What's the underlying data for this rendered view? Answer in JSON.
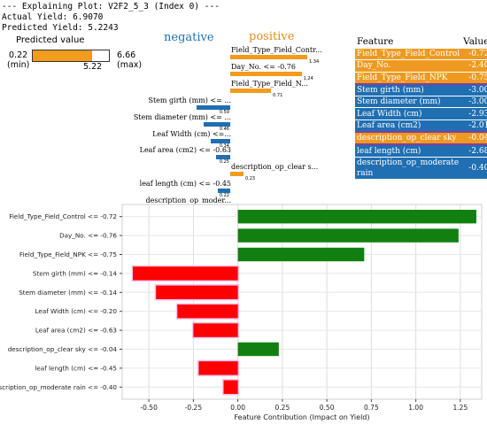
{
  "header": {
    "line1": "--- Explaining Plot: V2F2_5_3 (Index 0) ---",
    "line2": "Actual Yield: 6.9070",
    "line3": "Predicted Yield: 5.2243"
  },
  "predicted_value": {
    "title": "Predicted value",
    "min": "0.22",
    "min_label": "(min)",
    "max": "6.66",
    "max_label": "(max)",
    "value": "5.22",
    "fraction": 0.776,
    "bar_color": "#f29b1d"
  },
  "lime_bars": {
    "negative_label": "negative",
    "positive_label": "positive",
    "negative_color": "#1f6fb2",
    "positive_color": "#f29b1d",
    "items": [
      {
        "label": "Field_Type_Field_Contr...",
        "value": 1.34,
        "value_label": "1.34",
        "side": "positive"
      },
      {
        "label": "Day_No. <= -0.76",
        "value": 1.24,
        "value_label": "1.24",
        "side": "positive"
      },
      {
        "label": "Field_Type_Field_N...",
        "value": 0.71,
        "value_label": "0.71",
        "side": "positive"
      },
      {
        "label": "Stem girth (mm) <= ...",
        "value": -0.59,
        "value_label": "0.59",
        "side": "negative"
      },
      {
        "label": "Stem diameter (mm) <= ...",
        "value": -0.46,
        "value_label": "0.46",
        "side": "negative"
      },
      {
        "label": "Leaf Width (cm) <=...",
        "value": -0.34,
        "value_label": "0.34",
        "side": "negative"
      },
      {
        "label": "Leaf area (cm2) <= -0.63",
        "value": -0.25,
        "value_label": "0.25",
        "side": "negative"
      },
      {
        "label": "description_op_clear s...",
        "value": 0.23,
        "value_label": "0.23",
        "side": "positive"
      },
      {
        "label": "leaf length (cm) <= -0.45",
        "value": -0.22,
        "value_label": "0.22",
        "side": "negative"
      },
      {
        "label": "description_op_moder...",
        "value": -0.08,
        "value_label": "0.08",
        "side": "negative"
      }
    ]
  },
  "feature_table": {
    "col_feature": "Feature",
    "col_value": "Value",
    "rows": [
      {
        "feature": "Field_Type_Field_Control",
        "value": "-0.72",
        "group": 0
      },
      {
        "feature": "Day_No.",
        "value": "-2.40",
        "group": 0
      },
      {
        "feature": "Field_Type_Field_NPK",
        "value": "-0.75",
        "group": 0
      },
      {
        "feature": "Stem girth (mm)",
        "value": "-3.00",
        "group": 1,
        "sep": true
      },
      {
        "feature": "Stem diameter (mm)",
        "value": "-3.00",
        "group": 1
      },
      {
        "feature": "Leaf Width (cm)",
        "value": "-2.93",
        "group": 1
      },
      {
        "feature": "Leaf area (cm2)",
        "value": "-2.01",
        "group": 1
      },
      {
        "feature": "description_op_clear sky",
        "value": "-0.04",
        "group": 0,
        "sep": true
      },
      {
        "feature": "leaf length (cm)",
        "value": "-2.68",
        "group": 1,
        "sep": true
      },
      {
        "feature": "description_op_moderate rain",
        "value": "-0.40",
        "group": 1
      }
    ]
  },
  "chart_data": {
    "type": "bar",
    "orientation": "horizontal",
    "xlabel": "Feature Contribution (Impact on Yield)",
    "xlim": [
      -0.65,
      1.37
    ],
    "xticks": [
      -0.5,
      -0.25,
      0.0,
      0.25,
      0.5,
      0.75,
      1.0,
      1.25
    ],
    "xtick_labels": [
      "-0.50",
      "-0.25",
      "0.00",
      "0.25",
      "0.50",
      "0.75",
      "1.00",
      "1.25"
    ],
    "grid": true,
    "positive_color": "#118011",
    "negative_color": "#ff0000",
    "categories": [
      "Field_Type_Field_Control <= -0.72",
      "Day_No. <= -0.76",
      "Field_Type_Field_NPK <= -0.75",
      "Stem girth (mm) <= -0.14",
      "Stem diameter (mm) <= -0.14",
      "Leaf Width (cm) <= -0.20",
      "Leaf area (cm2) <= -0.63",
      "description_op_clear sky <= -0.04",
      "leaf length (cm) <= -0.45",
      "description_op_moderate rain <= -0.40"
    ],
    "values": [
      1.34,
      1.24,
      0.71,
      -0.59,
      -0.46,
      -0.34,
      -0.25,
      0.23,
      -0.22,
      -0.08
    ]
  }
}
